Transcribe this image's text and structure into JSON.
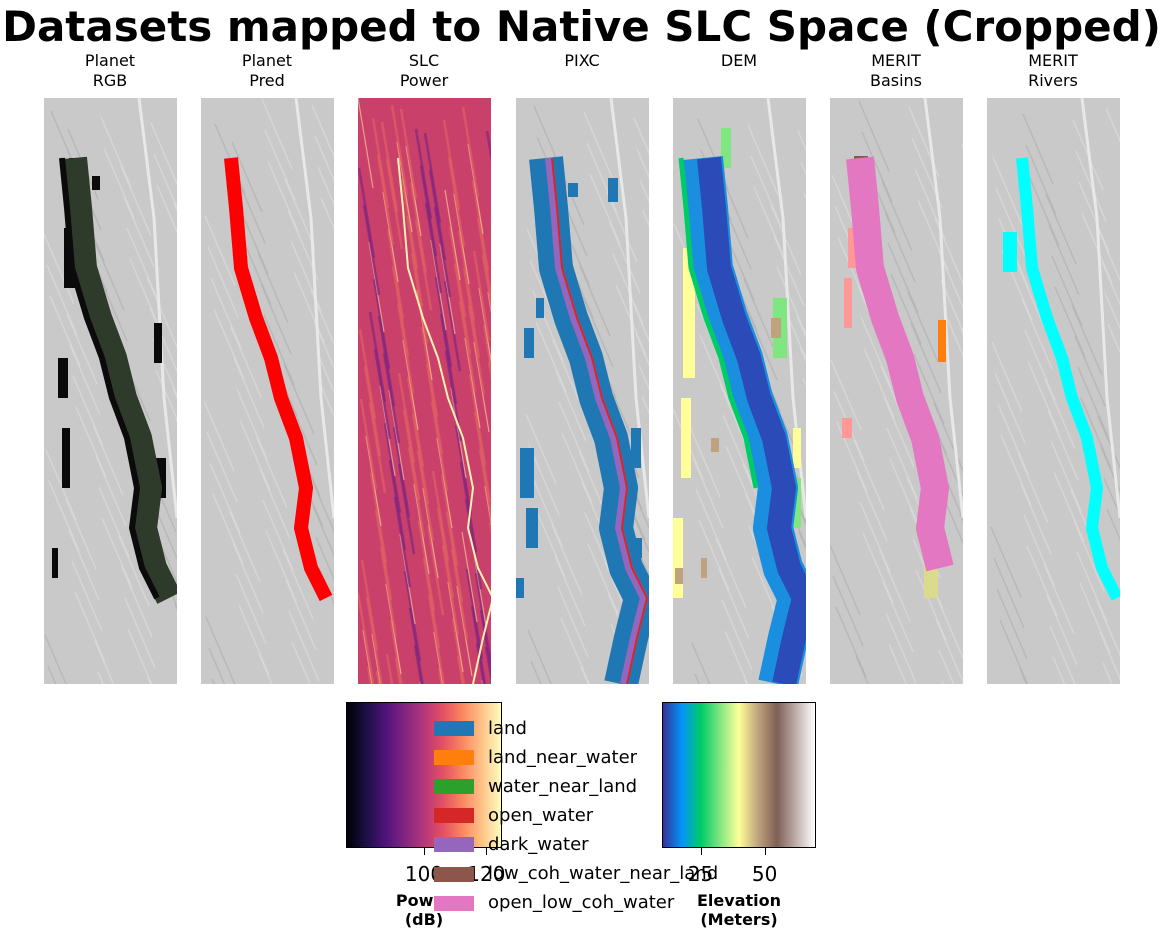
{
  "title": "Datasets mapped to Native SLC Space (Cropped)",
  "chart_data": [
    {
      "type": "heatmap",
      "panels": [
        {
          "title": "Planet\nRGB",
          "layer": "rgb",
          "color": "#2f3b2a"
        },
        {
          "title": "Planet\nPred",
          "layer": "pred",
          "color": "#ff0000"
        },
        {
          "title": "SLC\nPower",
          "layer": "power",
          "color": "#d8546a"
        },
        {
          "title": "PIXC",
          "layer": "pixc",
          "color": "#1f77b4"
        },
        {
          "title": "DEM",
          "layer": "dem",
          "color": "#2a4bb8"
        },
        {
          "title": "MERIT\nBasins",
          "layer": "basins",
          "color": "#e377c2"
        },
        {
          "title": "MERIT\nRivers",
          "layer": "rivers",
          "color": "#00ffff"
        }
      ]
    },
    {
      "type": "heatmap",
      "colorbar": "power",
      "colormap": "magma",
      "ticks": [
        "100",
        "120"
      ],
      "label": "Power\n(dB)",
      "range": [
        75,
        125
      ]
    },
    {
      "type": "heatmap",
      "colorbar": "elevation",
      "colormap": "terrain",
      "ticks": [
        "25",
        "50"
      ],
      "label": "Elevation\n(Meters)",
      "range": [
        10,
        70
      ]
    },
    {
      "type": "legend",
      "entries": [
        {
          "label": "land",
          "color": "#1f77b4"
        },
        {
          "label": "land_near_water",
          "color": "#ff7f0e"
        },
        {
          "label": "water_near_land",
          "color": "#2ca02c"
        },
        {
          "label": "open_water",
          "color": "#d62728"
        },
        {
          "label": "dark_water",
          "color": "#9467bd"
        },
        {
          "label": "low_coh_water_near_land",
          "color": "#8c564b"
        },
        {
          "label": "open_low_coh_water",
          "color": "#e377c2"
        }
      ]
    }
  ]
}
